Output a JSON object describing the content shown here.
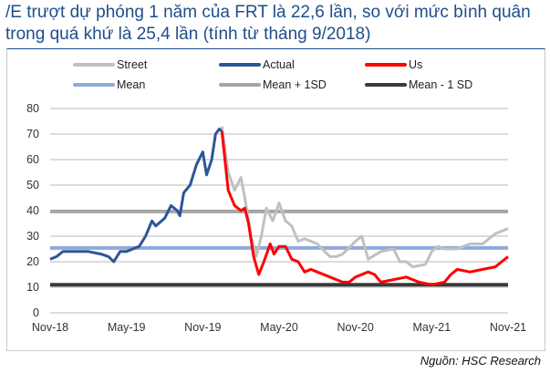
{
  "title": "/E trượt dự phóng 1 năm của FRT là 22,6 lần, so với mức bình quân trong quá khứ là 25,4 lần (tính từ tháng 9/2018)",
  "source": "Nguồn: HSC Research",
  "chart_data": {
    "type": "line",
    "title": "/E trượt dự phóng 1 năm của FRT là 22,6 lần, so với mức bình quân trong quá khứ là 25,4 lần (tính từ tháng 9/2018)",
    "xlabel": "",
    "ylabel": "",
    "ylim": [
      0,
      80
    ],
    "yticks": [
      "0",
      "10",
      "20",
      "30",
      "40",
      "50",
      "60",
      "70",
      "80"
    ],
    "xticks": [
      "Nov-18",
      "May-19",
      "Nov-19",
      "May-20",
      "Nov-20",
      "May-21",
      "Nov-21"
    ],
    "x_unit": "months since Nov-18",
    "xlim": [
      0,
      36
    ],
    "grid": true,
    "legend_placement": "top",
    "series": [
      {
        "name": "Street",
        "color": "#c0c0c0",
        "x": [
          13.5,
          14,
          14.5,
          15,
          15.3,
          15.8,
          16.2,
          16.6,
          17,
          17.5,
          18,
          18.5,
          19,
          19.5,
          20,
          21,
          22,
          22.5,
          23,
          24,
          24.5,
          25,
          26,
          27,
          27.5,
          28,
          28.5,
          29.5,
          30,
          30.5,
          31,
          32,
          33,
          34,
          35,
          36
        ],
        "y": [
          73,
          55,
          48,
          53,
          45,
          30,
          22,
          30,
          41,
          36,
          43,
          36,
          34,
          28,
          29,
          27,
          22,
          22,
          23,
          28,
          30,
          21,
          24,
          25,
          20,
          20,
          18,
          19,
          24,
          26,
          25,
          25,
          27,
          27,
          31,
          33
        ]
      },
      {
        "name": "Actual",
        "color": "#2f5597",
        "x": [
          0,
          0.5,
          1,
          2,
          3,
          4,
          4.6,
          5,
          5.5,
          6,
          6.5,
          7,
          7.5,
          8,
          8.3,
          9,
          9.5,
          10,
          10.2,
          10.5,
          11,
          11.5,
          12,
          12.3,
          12.7,
          13,
          13.3,
          13.5
        ],
        "y": [
          21,
          22,
          24,
          24,
          24,
          23,
          22,
          20,
          24,
          24,
          25,
          26,
          30,
          36,
          34,
          37,
          42,
          40,
          38,
          47,
          50,
          58,
          63,
          54,
          60,
          70,
          72,
          71
        ]
      },
      {
        "name": "Us",
        "color": "#ff0000",
        "x": [
          13.5,
          14,
          14.5,
          15,
          15.3,
          15.6,
          16,
          16.4,
          16.8,
          17.3,
          17.6,
          18,
          18.5,
          19,
          19.5,
          20,
          20.5,
          21,
          22,
          23,
          23.5,
          24,
          25,
          25.5,
          26,
          27,
          28,
          29,
          30,
          31,
          31.5,
          32,
          33,
          34,
          35,
          35.5,
          36
        ],
        "y": [
          71,
          48,
          42,
          40,
          41,
          35,
          22,
          15,
          20,
          27,
          23,
          26,
          26,
          21,
          20,
          16,
          17,
          16,
          14,
          12,
          12,
          14,
          16,
          15,
          12,
          13,
          14,
          12,
          11,
          12,
          15,
          17,
          16,
          17,
          18,
          20,
          22
        ]
      },
      {
        "name": "Mean",
        "color": "#8eaadb",
        "constant": 25.4
      },
      {
        "name": "Mean + 1SD",
        "color": "#a6a6a6",
        "constant": 39.7
      },
      {
        "name": "Mean - 1 SD",
        "color": "#3a3a3a",
        "constant": 11
      }
    ]
  }
}
